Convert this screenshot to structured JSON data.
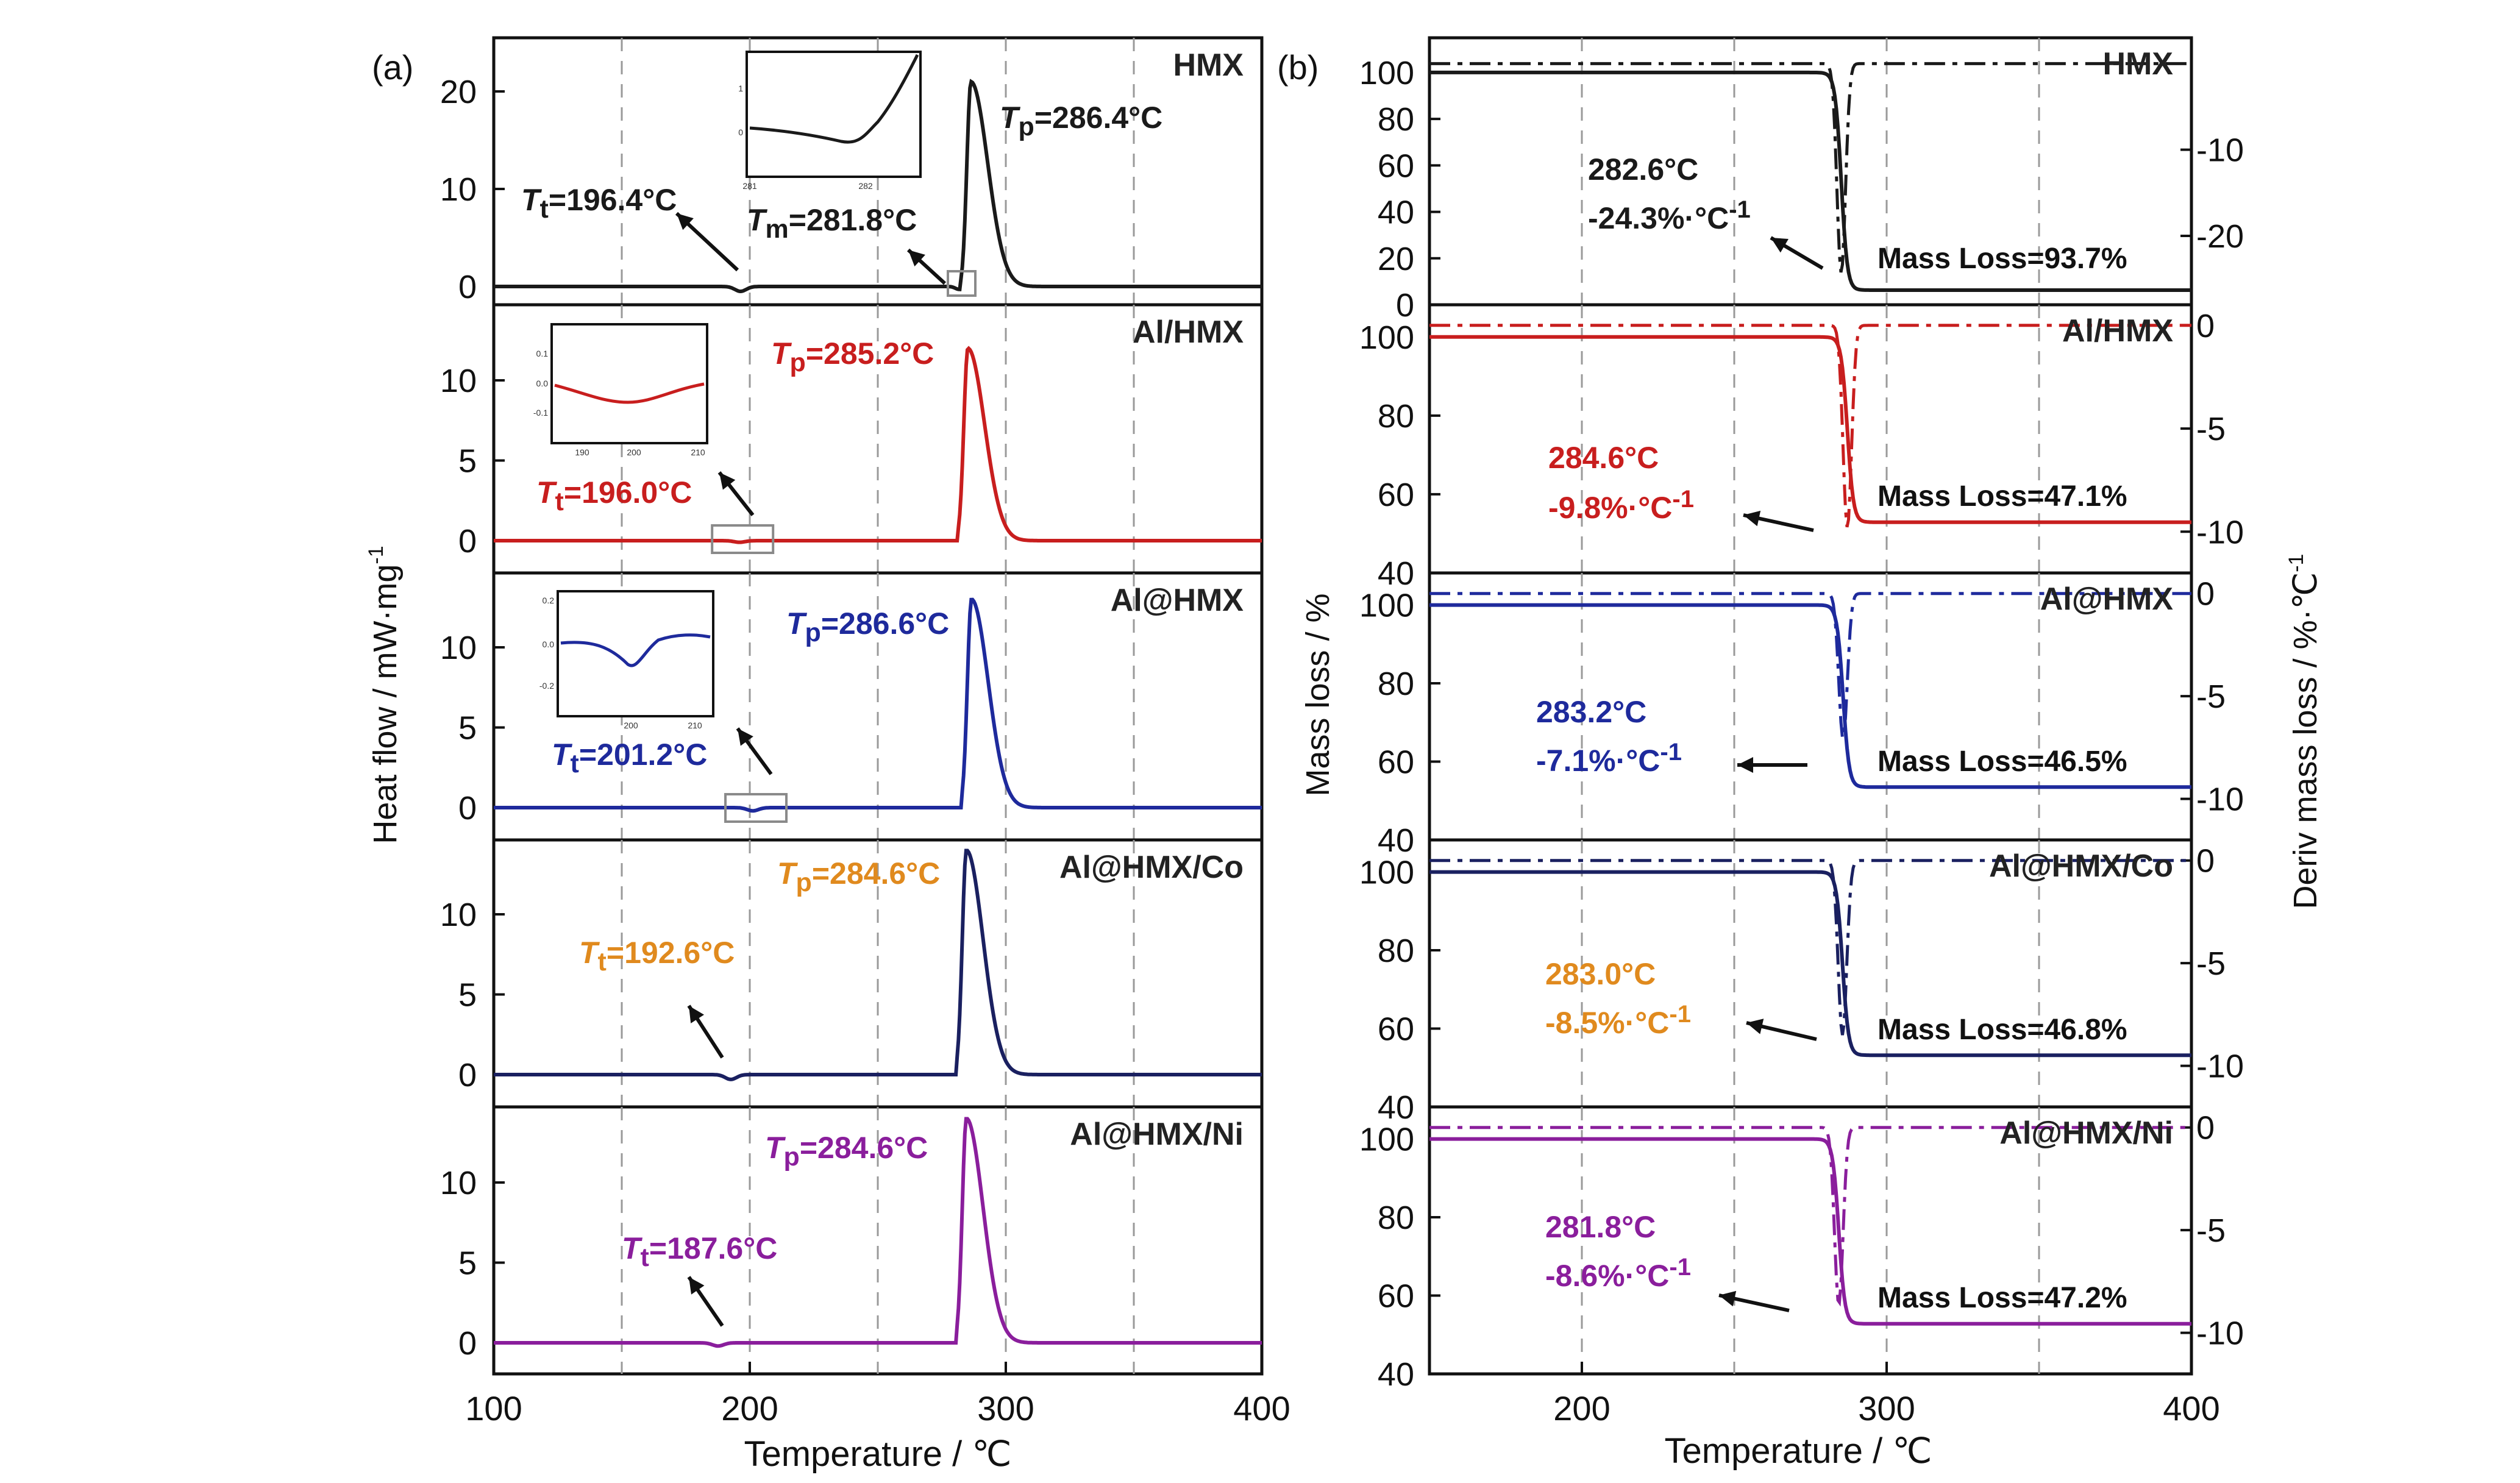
{
  "panel_labels": [
    "(a)",
    "(b)"
  ],
  "panel_a": {
    "ylabel": "Heat flow / mW·mg",
    "ylabel_sup": "-1",
    "xlabel": "Temperature / ℃",
    "x_ticks": [
      "100",
      "200",
      "300",
      "400"
    ]
  },
  "panel_b": {
    "ylabel_left": "Mass loss / %",
    "ylabel_right": "Deriv mass loss / %·℃",
    "ylabel_right_sup": "-1",
    "xlabel": "Temperature / ℃",
    "x_ticks": [
      "200",
      "300",
      "400"
    ]
  },
  "chart_data": [
    {
      "type": "line",
      "panel": "(a)",
      "xlabel": "Temperature / ℃",
      "ylabel": "Heat flow / mW·mg-1",
      "xlim": [
        100,
        400
      ],
      "series": [
        {
          "name": "HMX",
          "color": "#1a1a1a",
          "ylim": [
            -2,
            25
          ],
          "yticks": [
            "0",
            "10",
            "20"
          ],
          "peaks": {
            "Tt": {
              "label": "Tt=196.4°C",
              "x": 196.4,
              "y": -0.5
            },
            "Tm": {
              "label": "Tm=281.8°C",
              "x": 281.8,
              "y": -0.3
            },
            "Tp": {
              "label": "Tp=286.4°C",
              "x": 286.4,
              "y": 21
            }
          }
        },
        {
          "name": "Al/HMX",
          "color": "#c81e1e",
          "ylim": [
            -2,
            14
          ],
          "yticks": [
            "0",
            "5",
            "10"
          ],
          "peaks": {
            "Tt": {
              "label": "Tt=196.0°C",
              "x": 196.0,
              "y": -0.1
            },
            "Tp": {
              "label": "Tp=285.2°C",
              "x": 285.2,
              "y": 12
            }
          }
        },
        {
          "name": "Al@HMX",
          "color": "#1e2a9c",
          "ylim": [
            -2,
            14
          ],
          "yticks": [
            "0",
            "5",
            "10"
          ],
          "peaks": {
            "Tt": {
              "label": "Tt=201.2°C",
              "x": 201.2,
              "y": -0.2
            },
            "Tp": {
              "label": "Tp=286.6°C",
              "x": 286.6,
              "y": 13
            }
          }
        },
        {
          "name": "Al@HMX/Co",
          "color": "#1a2060",
          "ylim": [
            -2,
            14
          ],
          "yticks": [
            "0",
            "5",
            "10"
          ],
          "peaks": {
            "Tt": {
              "label": "Tt=192.6°C",
              "x": 192.6,
              "y": -0.3
            },
            "Tp": {
              "label": "Tp=284.6°C",
              "x": 284.6,
              "y": 14
            }
          }
        },
        {
          "name": "Al@HMX/Ni",
          "color": "#8a1e9c",
          "ylim": [
            -2,
            14
          ],
          "yticks": [
            "0",
            "5",
            "10"
          ],
          "peaks": {
            "Tt": {
              "label": "Tt=187.6°C",
              "x": 187.6,
              "y": -0.2
            },
            "Tp": {
              "label": "Tp=284.6°C",
              "x": 284.6,
              "y": 14
            }
          }
        }
      ]
    },
    {
      "type": "line",
      "panel": "(b)",
      "xlabel": "Temperature / ℃",
      "ylabel": "Mass loss / %",
      "y2label": "Deriv mass loss / %·℃-1",
      "xlim": [
        150,
        400
      ],
      "series": [
        {
          "name": "HMX",
          "color": "#1a1a1a",
          "ylim": [
            0,
            100
          ],
          "yticks": [
            "0",
            "20",
            "40",
            "60",
            "80",
            "100"
          ],
          "y2ticks": [
            "-10",
            "-20"
          ],
          "y2lim": [
            -28,
            3
          ],
          "onset": "282.6°C",
          "dtg_peak": "-24.3%·°C-1",
          "dtg_peak_value": -24.3,
          "onset_value": 282.6,
          "mass_loss": "Mass Loss=93.7%",
          "final_mass": 6.3
        },
        {
          "name": "Al/HMX",
          "color": "#c81e1e",
          "ylim": [
            40,
            100
          ],
          "yticks": [
            "40",
            "60",
            "80",
            "100"
          ],
          "y2ticks": [
            "0",
            "-5",
            "-10"
          ],
          "y2lim": [
            -12,
            1
          ],
          "onset": "284.6°C",
          "dtg_peak": "-9.8%·°C-1",
          "dtg_peak_value": -9.8,
          "onset_value": 284.6,
          "mass_loss": "Mass Loss=47.1%",
          "final_mass": 52.9
        },
        {
          "name": "Al@HMX",
          "color": "#1e2a9c",
          "ylim": [
            40,
            100
          ],
          "yticks": [
            "40",
            "60",
            "80",
            "100"
          ],
          "y2ticks": [
            "0",
            "-5",
            "-10"
          ],
          "y2lim": [
            -12,
            1
          ],
          "onset": "283.2°C",
          "dtg_peak": "-7.1%·°C-1",
          "dtg_peak_value": -7.1,
          "onset_value": 283.2,
          "mass_loss": "Mass Loss=46.5%",
          "final_mass": 53.5
        },
        {
          "name": "Al@HMX/Co",
          "color": "#1a2060",
          "ylim": [
            40,
            100
          ],
          "yticks": [
            "40",
            "60",
            "80",
            "100"
          ],
          "y2ticks": [
            "0",
            "-5",
            "-10"
          ],
          "y2lim": [
            -12,
            1
          ],
          "onset": "283.0°C",
          "dtg_peak": "-8.5%·°C-1",
          "dtg_peak_value": -8.5,
          "onset_value": 283.0,
          "mass_loss": "Mass Loss=46.8%",
          "final_mass": 53.2
        },
        {
          "name": "Al@HMX/Ni",
          "color": "#8a1e9c",
          "ylim": [
            40,
            100
          ],
          "yticks": [
            "40",
            "60",
            "80",
            "100"
          ],
          "y2ticks": [
            "0",
            "-5",
            "-10"
          ],
          "y2lim": [
            -12,
            1
          ],
          "onset": "281.8°C",
          "dtg_peak": "-8.6%·°C-1",
          "dtg_peak_value": -8.6,
          "onset_value": 281.8,
          "mass_loss": "Mass Loss=47.2%",
          "final_mass": 52.8
        }
      ]
    }
  ],
  "annotation_colors": [
    "#1a1a1a",
    "#c81e1e",
    "#1e2a9c",
    "#e08a1e",
    "#8a1e9c"
  ]
}
